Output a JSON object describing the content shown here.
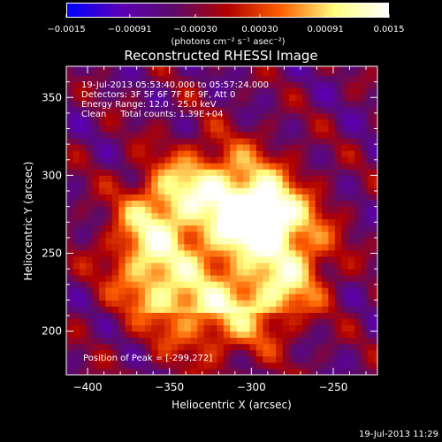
{
  "colorbar": {
    "ticks": [
      "-0.0015",
      "-0.00091",
      "-0.00030",
      "0.00030",
      "0.00091",
      "0.0015"
    ],
    "tick_values": [
      -0.0015,
      -0.00091,
      -0.0003,
      0.0003,
      0.00091,
      0.0015
    ],
    "range": [
      -0.0015,
      0.0015
    ],
    "unit_label": "(photons cm⁻² s⁻¹ asec⁻²)",
    "colors": [
      "#0000ff",
      "#5a00b5",
      "#5c0a6a",
      "#b00000",
      "#ff6000",
      "#ffff80",
      "#ffffff"
    ]
  },
  "title": "Reconstructed RHESSI Image",
  "info": {
    "line1": "19-Jul-2013 05:53:40.000 to 05:57:24.000",
    "line2": "Detectors: 3F 5F 6F 7F 8F 9F, Att 0",
    "line3": "Energy Range: 12.0 - 25.0 keV",
    "line4": "Clean     Total counts: 1.39E+04"
  },
  "peak_label": "Position of Peak = [-299,272]",
  "timestamp": "19-Jul-2013 11:29",
  "chart_data": {
    "type": "heatmap",
    "title": "Reconstructed RHESSI Image",
    "xlabel": "Heliocentric X (arcsec)",
    "ylabel": "Heliocentric Y (arcsec)",
    "xlim": [
      -413,
      -223
    ],
    "ylim": [
      172,
      370
    ],
    "x_ticks": [
      -400,
      -350,
      -300,
      -250
    ],
    "x_tick_labels": [
      "−400",
      "−350",
      "−300",
      "−250"
    ],
    "y_ticks": [
      200,
      250,
      300,
      350
    ],
    "y_tick_labels": [
      "200",
      "250",
      "300",
      "350"
    ],
    "peak": {
      "x": -299,
      "y": 272
    },
    "pixel_size_arcsec": 4,
    "value_range": [
      -0.0015,
      0.0015
    ]
  }
}
